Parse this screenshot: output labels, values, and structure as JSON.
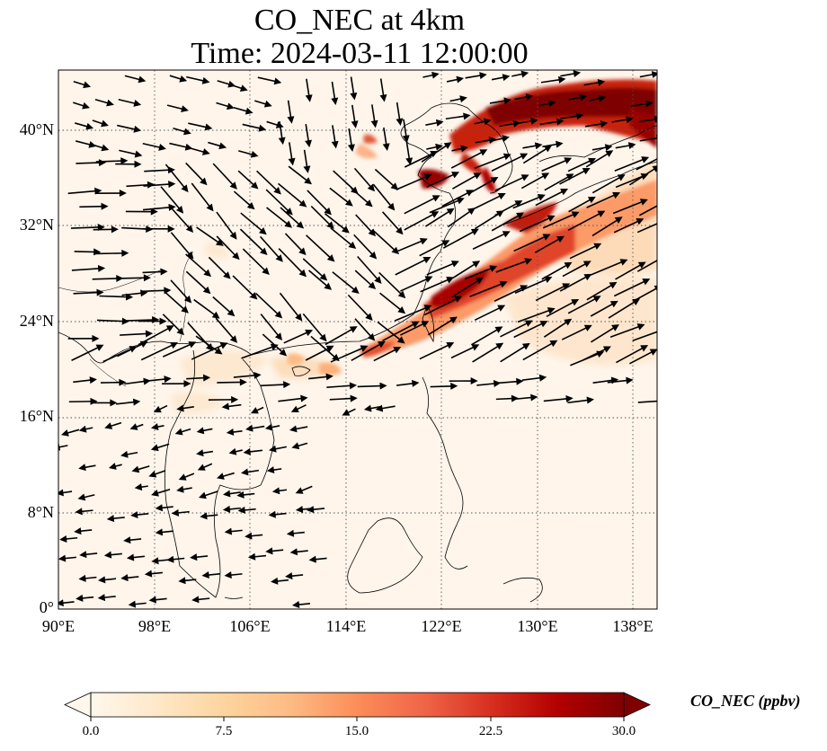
{
  "title_line1": "CO_NEC at 4km",
  "title_line2": "Time: 2024-03-11 12:00:00",
  "map": {
    "projection": "PlateCarree",
    "lon_range": [
      90,
      140
    ],
    "lat_range": [
      0,
      45
    ],
    "gridlines": "dotted",
    "lon_ticks": [
      "90°E",
      "98°E",
      "106°E",
      "114°E",
      "122°E",
      "130°E",
      "138°E"
    ],
    "lat_ticks": [
      "0°",
      "8°N",
      "16°N",
      "24°N",
      "32°N",
      "40°N"
    ],
    "background_color": "#fff5eb",
    "coastline_color": "#000000"
  },
  "colorbar": {
    "label": "CO_NEC (ppbv)",
    "ticks": [
      "0.0",
      "7.5",
      "15.0",
      "22.5",
      "30.0"
    ],
    "min": 0,
    "max": 30,
    "extend": "both",
    "colormap": "OrRd",
    "colors": [
      "#fff7ec",
      "#fee8c8",
      "#fdd49e",
      "#fdbb84",
      "#fc8d59",
      "#ef6548",
      "#d7301f",
      "#b30000",
      "#7f0000"
    ]
  },
  "wind_vectors": "black arrows"
}
